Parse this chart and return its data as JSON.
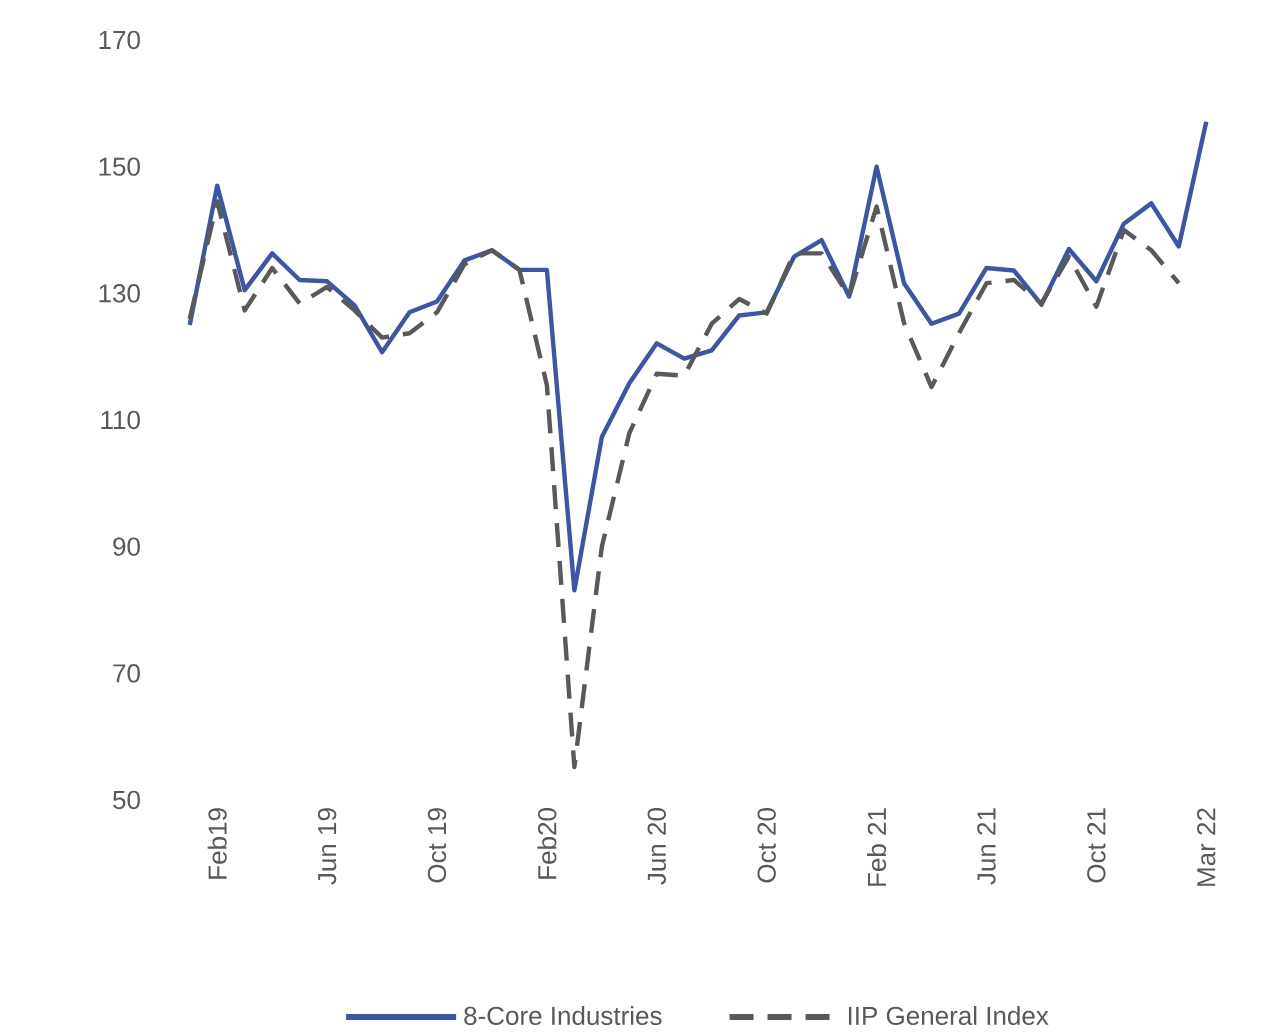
{
  "chart_data": {
    "type": "line",
    "categories": [
      null,
      "Feb19",
      null,
      null,
      null,
      "Jun 19",
      null,
      null,
      null,
      "Oct 19",
      null,
      null,
      null,
      "Feb20",
      null,
      null,
      null,
      "Jun 20",
      null,
      null,
      null,
      "Oct 20",
      null,
      null,
      null,
      "Feb 21",
      null,
      null,
      null,
      "Jun 21",
      null,
      null,
      null,
      "Oct 21",
      null,
      null,
      null,
      "Mar 22"
    ],
    "series": [
      {
        "name": "8-Core Industries",
        "color": "#3b56a8",
        "line_style": "solid",
        "values": [
          125,
          147,
          130.5,
          136.3,
          132.1,
          131.9,
          128.1,
          120.7,
          127,
          128.7,
          135.2,
          136.8,
          133.7,
          133.7,
          83.1,
          107.3,
          115.8,
          122.1,
          119.7,
          121,
          126.5,
          127,
          135.8,
          138.4,
          129.5,
          150,
          131.6,
          125.2,
          126.8,
          134,
          133.6,
          128.2,
          137,
          131.9,
          141,
          144.2,
          137.4,
          157.1
        ]
      },
      {
        "name": "IIP General Index",
        "color": "#595959",
        "line_style": "dashed",
        "values": [
          126,
          144.5,
          127.3,
          134,
          128.4,
          131,
          127.3,
          123,
          123.7,
          127,
          134.6,
          136.8,
          133.7,
          115.5,
          55.2,
          90,
          107.9,
          117.3,
          117,
          125.2,
          129.1,
          126.8,
          136.3,
          136.3,
          129.5,
          143.7,
          125.3,
          115.2,
          123.7,
          131.6,
          132.1,
          128.4,
          135.8,
          127.9,
          140,
          136.8,
          131.6,
          null
        ]
      }
    ],
    "ylim": [
      50,
      170
    ],
    "yticks": [
      50,
      70,
      90,
      110,
      130,
      150,
      170
    ],
    "grid": false,
    "legend": "bottom",
    "marker": "none"
  }
}
